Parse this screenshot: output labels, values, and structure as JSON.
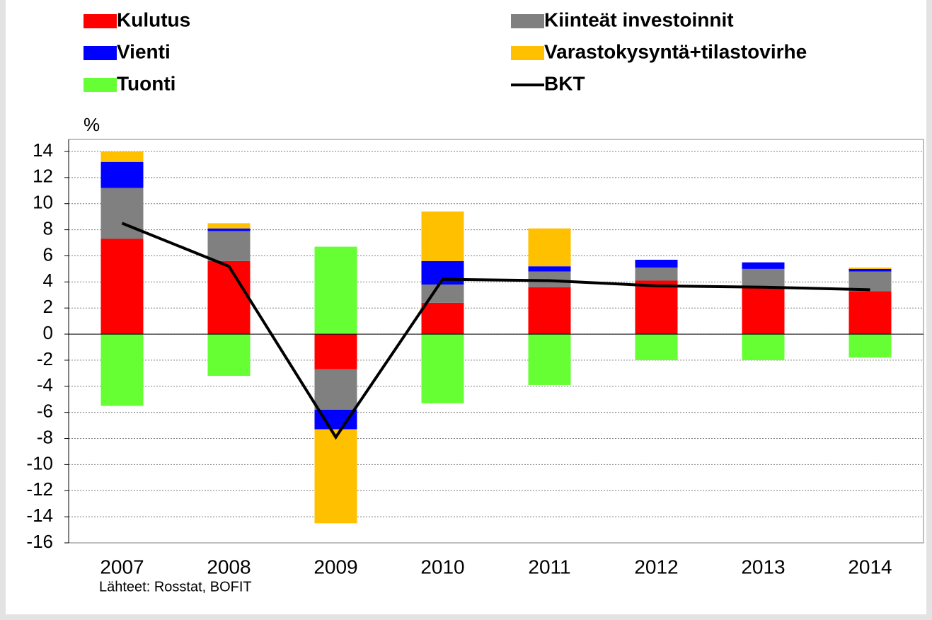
{
  "chart_data": {
    "type": "bar",
    "y_label": "%",
    "source": "Lähteet: Rosstat, BOFIT",
    "categories": [
      "2007",
      "2008",
      "2009",
      "2010",
      "2011",
      "2012",
      "2013",
      "2014"
    ],
    "series": [
      {
        "name": "Kulutus",
        "color": "#ff0000",
        "values": [
          7.3,
          5.6,
          -2.7,
          2.4,
          3.6,
          4.1,
          3.6,
          3.3
        ]
      },
      {
        "name": "Kiinteät investoinnit",
        "color": "#808080",
        "values": [
          3.9,
          2.3,
          -3.1,
          1.4,
          1.2,
          1.0,
          1.4,
          1.5
        ]
      },
      {
        "name": "Vienti",
        "color": "#0000ff",
        "values": [
          2.0,
          0.2,
          -1.5,
          1.8,
          0.4,
          0.6,
          0.5,
          0.2
        ]
      },
      {
        "name": "Varastokysyntä+tilastovirhe",
        "color": "#ffc000",
        "values": [
          0.8,
          0.4,
          -7.2,
          3.8,
          2.9,
          0,
          0,
          0.1
        ]
      },
      {
        "name": "Tuonti",
        "color": "#66ff33",
        "values": [
          -5.5,
          -3.2,
          6.7,
          -5.3,
          -3.9,
          -2.0,
          -2.0,
          -1.8
        ]
      },
      {
        "name": "BKT",
        "color": "#000000",
        "type": "line",
        "values": [
          8.5,
          5.2,
          -7.9,
          4.2,
          4.1,
          3.7,
          3.6,
          3.4
        ]
      }
    ],
    "ylim": [
      -16,
      14
    ],
    "yticks": [
      -16,
      -14,
      -12,
      -10,
      -8,
      -6,
      -4,
      -2,
      0,
      2,
      4,
      6,
      8,
      10,
      12,
      14
    ],
    "grid": true
  }
}
